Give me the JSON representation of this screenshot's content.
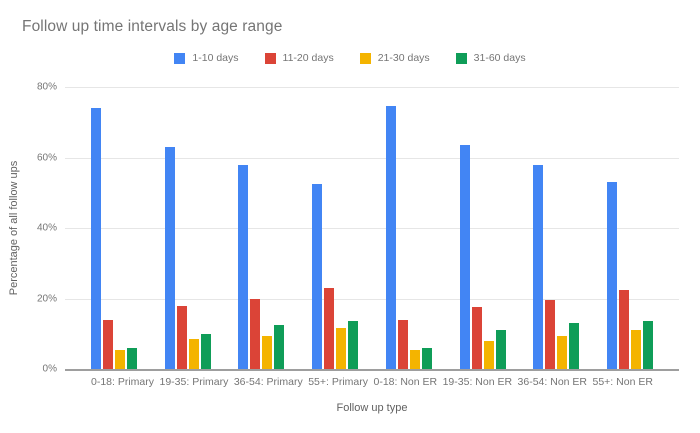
{
  "chart_data": {
    "type": "bar",
    "title": "Follow up time intervals by age range",
    "xlabel": "Follow up type",
    "ylabel": "Percentage of all follow ups",
    "ylim": [
      0,
      80
    ],
    "yticks": [
      {
        "value": 0,
        "label": "0%"
      },
      {
        "value": 20,
        "label": "20%"
      },
      {
        "value": 40,
        "label": "40%"
      },
      {
        "value": 60,
        "label": "60%"
      },
      {
        "value": 80,
        "label": "80%"
      }
    ],
    "grid": true,
    "legend_position": "top-center",
    "categories": [
      "0-18: Primary",
      "19-35: Primary",
      "36-54: Primary",
      "55+: Primary",
      "0-18: Non ER",
      "19-35: Non ER",
      "36-54: Non ER",
      "55+: Non ER"
    ],
    "series": [
      {
        "name": "1-10 days",
        "color": "#4285F4",
        "values": [
          74,
          63,
          58,
          52.5,
          74.5,
          63.5,
          58,
          53
        ]
      },
      {
        "name": "11-20 days",
        "color": "#DB4437",
        "values": [
          14,
          18,
          20,
          23,
          14,
          17.5,
          19.5,
          22.5
        ]
      },
      {
        "name": "21-30 days",
        "color": "#F4B400",
        "values": [
          5.5,
          8.5,
          9.5,
          11.5,
          5.5,
          8,
          9.5,
          11
        ]
      },
      {
        "name": "31-60 days",
        "color": "#0F9D58",
        "values": [
          6,
          10,
          12.5,
          13.5,
          6,
          11,
          13,
          13.5
        ]
      }
    ]
  },
  "colors": {
    "background": "#ffffff",
    "title_text": "#757575",
    "axis_text": "#757575",
    "axis_title_text": "#616161",
    "gridline": "#e6e6e6",
    "baseline": "#9e9e9e"
  }
}
